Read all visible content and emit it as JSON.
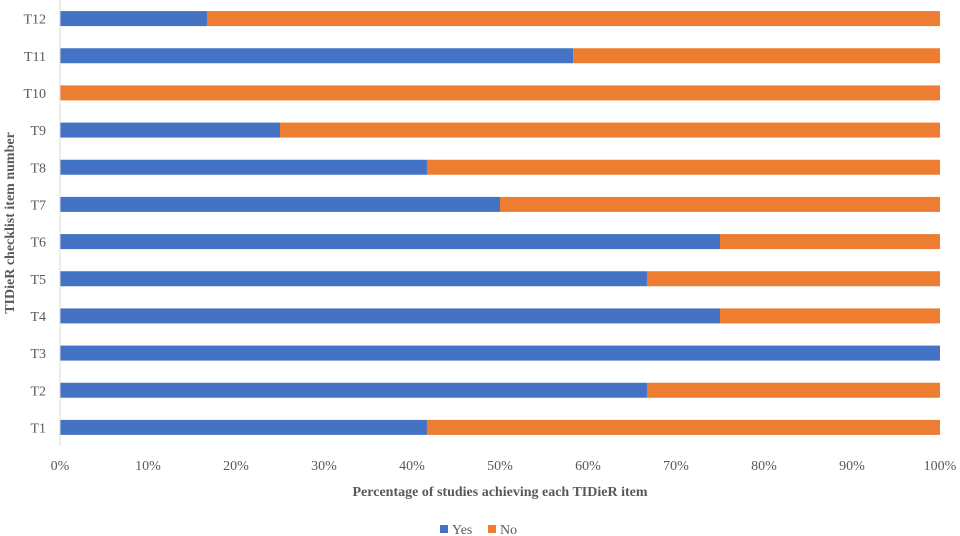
{
  "chart_data": {
    "type": "bar",
    "orientation": "horizontal",
    "stacked": true,
    "categories": [
      "T1",
      "T2",
      "T3",
      "T4",
      "T5",
      "T6",
      "T7",
      "T8",
      "T9",
      "T10",
      "T11",
      "T12"
    ],
    "series": [
      {
        "name": "Yes",
        "color": "#4472C4",
        "values": [
          41.7,
          66.7,
          100,
          75,
          66.7,
          75,
          50,
          41.7,
          25,
          0,
          58.3,
          16.7
        ]
      },
      {
        "name": "No",
        "color": "#ED7D31",
        "values": [
          58.3,
          33.3,
          0,
          25,
          33.3,
          25,
          50,
          58.3,
          75,
          100,
          41.7,
          83.3
        ]
      }
    ],
    "xlabel": "Percentage of studies achieving each TIDieR item",
    "ylabel": "TIDieR checklist item number",
    "xlim": [
      0,
      100
    ],
    "x_ticks": [
      "0%",
      "10%",
      "20%",
      "30%",
      "40%",
      "50%",
      "60%",
      "70%",
      "80%",
      "90%",
      "100%"
    ],
    "grid": false,
    "legend_position": "bottom"
  }
}
